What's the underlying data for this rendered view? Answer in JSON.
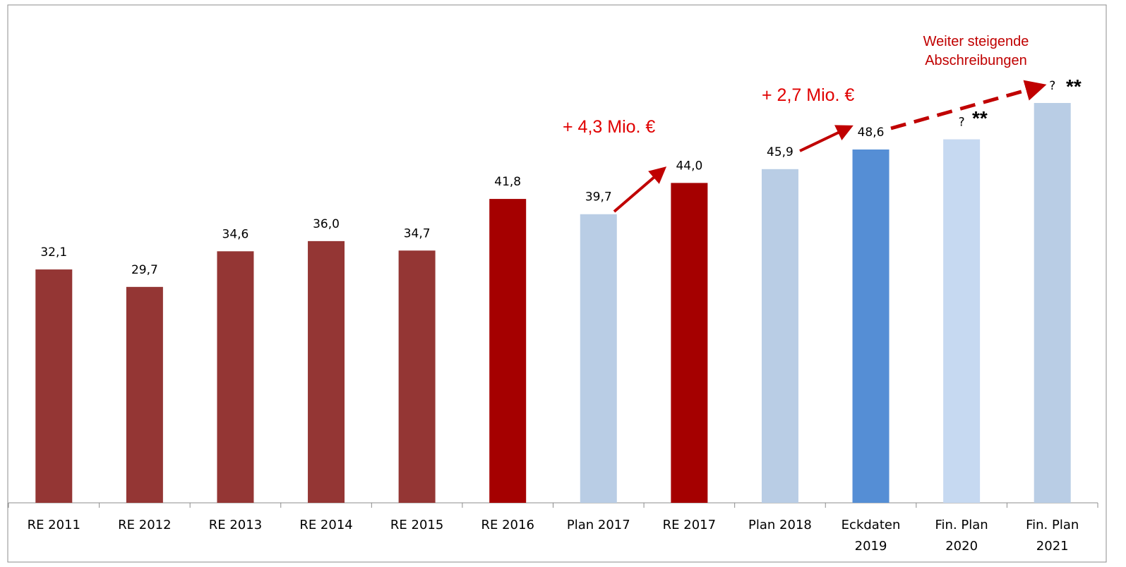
{
  "chart_data": {
    "type": "bar",
    "categories": [
      "RE 2011",
      "RE 2012",
      "RE 2013",
      "RE 2014",
      "RE 2015",
      "RE 2016",
      "Plan 2017",
      "RE 2017",
      "Plan 2018",
      "Eckdaten\n2019",
      "Fin. Plan\n2020",
      "Fin. Plan\n2021"
    ],
    "values": [
      32.1,
      29.7,
      34.6,
      36.0,
      34.7,
      41.8,
      39.7,
      44.0,
      45.9,
      48.6,
      50,
      55
    ],
    "value_labels": [
      "32,1",
      "29,7",
      "34,6",
      "36,0",
      "34,7",
      "41,8",
      "39,7",
      "44,0",
      "45,9",
      "48,6",
      "?",
      "?"
    ],
    "colors": [
      "#943634",
      "#943634",
      "#943634",
      "#943634",
      "#943634",
      "#a50000",
      "#b9cde5",
      "#a50000",
      "#b9cde5",
      "#558ed5",
      "#c6d9f1",
      "#b9cde5"
    ],
    "ylim": [
      0,
      68
    ],
    "annotations": [
      "+ 4,3 Mio. €",
      "+ 2,7 Mio. €",
      "Weiter steigende\nAbschreibungen",
      "**",
      "**"
    ]
  }
}
